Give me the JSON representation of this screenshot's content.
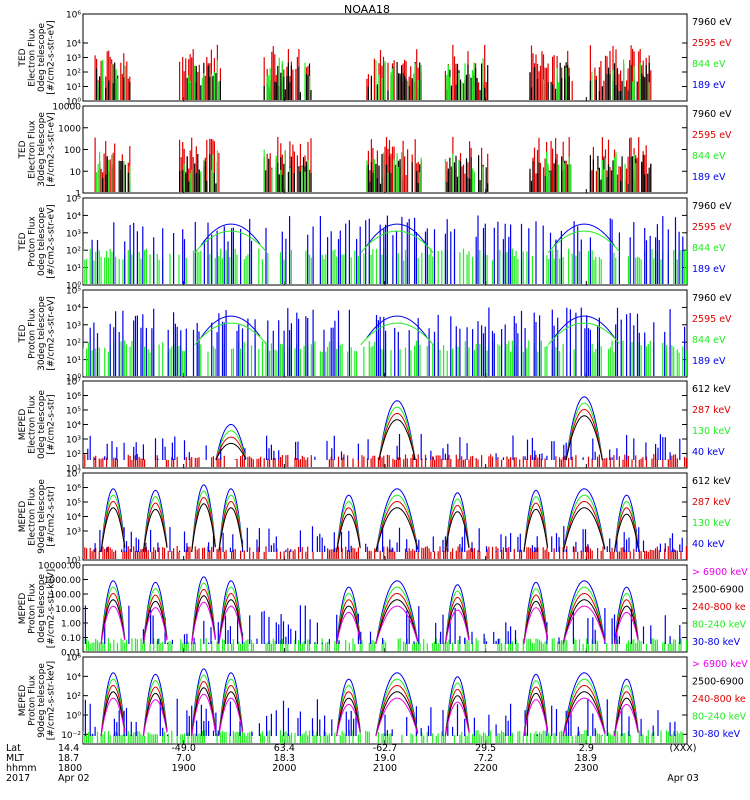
{
  "title": "NOAA18",
  "colors": {
    "black": "#000000",
    "red": "#e00000",
    "green": "#22ee22",
    "blue": "#0000ee",
    "magenta": "#ee00ee"
  },
  "chart_data": [
    {
      "type": "line",
      "id": "ted-e-0",
      "ylabel": [
        "TED",
        "Electron Flux",
        "0deg telescope",
        "[#/cm2-s-str-eV]"
      ],
      "y_log": true,
      "ylim": [
        1,
        1000000
      ],
      "yticks": [
        {
          "v": 1,
          "t": "10⁰"
        },
        {
          "v": 10,
          "t": "10¹"
        },
        {
          "v": 100,
          "t": "10²"
        },
        {
          "v": 1000,
          "t": "10³"
        },
        {
          "v": 10000,
          "t": "10⁴"
        },
        {
          "v": 1000000,
          "t": "10⁶"
        }
      ],
      "legend": [
        {
          "text": "7960 eV",
          "color": "#000000"
        },
        {
          "text": "2595 eV",
          "color": "#e00000"
        },
        {
          "text": "844 eV",
          "color": "#22ee22"
        },
        {
          "text": "189 eV",
          "color": "#0000ee"
        }
      ]
    },
    {
      "type": "line",
      "id": "ted-e-30",
      "ylabel": [
        "TED",
        "Electron Flux",
        "30deg telescope",
        "[#/cm2-s-str-eV]"
      ],
      "y_log": true,
      "ylim": [
        1,
        10000
      ],
      "yticks": [
        {
          "v": 1,
          "t": "1"
        },
        {
          "v": 10,
          "t": "10"
        },
        {
          "v": 100,
          "t": "100"
        },
        {
          "v": 1000,
          "t": "1000"
        },
        {
          "v": 10000,
          "t": "10000"
        }
      ],
      "legend": [
        {
          "text": "7960 eV",
          "color": "#000000"
        },
        {
          "text": "2595 eV",
          "color": "#e00000"
        },
        {
          "text": "844 eV",
          "color": "#22ee22"
        },
        {
          "text": "189 eV",
          "color": "#0000ee"
        }
      ]
    },
    {
      "type": "line",
      "id": "ted-p-0",
      "ylabel": [
        "TED",
        "Proton Flux",
        "0deg telescope",
        "[#/cm2-s-str-eV]"
      ],
      "y_log": true,
      "ylim": [
        1,
        100000
      ],
      "yticks": [
        {
          "v": 1,
          "t": "10⁰"
        },
        {
          "v": 10,
          "t": "10¹"
        },
        {
          "v": 100,
          "t": "10²"
        },
        {
          "v": 1000,
          "t": "10³"
        },
        {
          "v": 10000,
          "t": "10⁴"
        },
        {
          "v": 100000,
          "t": "10⁵"
        }
      ],
      "legend": [
        {
          "text": "7960 eV",
          "color": "#000000"
        },
        {
          "text": "2595 eV",
          "color": "#e00000"
        },
        {
          "text": "844 eV",
          "color": "#22ee22"
        },
        {
          "text": "189 eV",
          "color": "#0000ee"
        }
      ]
    },
    {
      "type": "line",
      "id": "ted-p-30",
      "ylabel": [
        "TED",
        "Proton Flux",
        "30deg telescope",
        "[#/cm2-s-str-eV]"
      ],
      "y_log": true,
      "ylim": [
        1,
        100000
      ],
      "yticks": [
        {
          "v": 1,
          "t": "10⁰"
        },
        {
          "v": 10,
          "t": "10¹"
        },
        {
          "v": 100,
          "t": "10²"
        },
        {
          "v": 1000,
          "t": "10³"
        },
        {
          "v": 10000,
          "t": "10⁴"
        },
        {
          "v": 100000,
          "t": "10⁵"
        }
      ],
      "legend": [
        {
          "text": "7960 eV",
          "color": "#000000"
        },
        {
          "text": "2595 eV",
          "color": "#e00000"
        },
        {
          "text": "844 eV",
          "color": "#22ee22"
        },
        {
          "text": "189 eV",
          "color": "#0000ee"
        }
      ]
    },
    {
      "type": "line",
      "id": "meped-e-0",
      "ylabel": [
        "MEPED",
        "Electron Flux",
        "0deg telescope",
        "[#/cm2-s-str]"
      ],
      "y_log": true,
      "ylim": [
        10,
        10000000
      ],
      "yticks": [
        {
          "v": 10,
          "t": "10¹"
        },
        {
          "v": 100,
          "t": "10²"
        },
        {
          "v": 1000,
          "t": "10³"
        },
        {
          "v": 10000,
          "t": "10⁴"
        },
        {
          "v": 100000,
          "t": "10⁵"
        },
        {
          "v": 1000000,
          "t": "10⁶"
        },
        {
          "v": 10000000,
          "t": "10⁷"
        }
      ],
      "legend": [
        {
          "text": "612 keV",
          "color": "#000000"
        },
        {
          "text": "287 keV",
          "color": "#e00000"
        },
        {
          "text": "130 keV",
          "color": "#22ee22"
        },
        {
          "text": "40 keV",
          "color": "#0000ee"
        }
      ]
    },
    {
      "type": "line",
      "id": "meped-e-90",
      "ylabel": [
        "MEPED",
        "Electron Flux",
        "90deg telescope",
        "[#/cm2-s-str]"
      ],
      "y_log": true,
      "ylim": [
        10,
        10000000
      ],
      "yticks": [
        {
          "v": 10,
          "t": "10¹"
        },
        {
          "v": 1000,
          "t": "10³"
        },
        {
          "v": 10000,
          "t": "10⁴"
        },
        {
          "v": 100000,
          "t": "10⁵"
        },
        {
          "v": 1000000,
          "t": "10⁶"
        },
        {
          "v": 10000000,
          "t": "10⁷"
        }
      ],
      "legend": [
        {
          "text": "612 keV",
          "color": "#000000"
        },
        {
          "text": "287 keV",
          "color": "#e00000"
        },
        {
          "text": "130 keV",
          "color": "#22ee22"
        },
        {
          "text": "40 keV",
          "color": "#0000ee"
        }
      ]
    },
    {
      "type": "line",
      "id": "meped-p-0",
      "ylabel": [
        "MEPED",
        "Proton Flux",
        "0deg telescope",
        "[#/cm2-s-str-keV]"
      ],
      "y_log": true,
      "ylim": [
        0.01,
        10000
      ],
      "yticks": [
        {
          "v": 0.01,
          "t": "0.01"
        },
        {
          "v": 0.1,
          "t": "0.10"
        },
        {
          "v": 1,
          "t": "1.00"
        },
        {
          "v": 10,
          "t": "10.00"
        },
        {
          "v": 100,
          "t": "100.00"
        },
        {
          "v": 1000,
          "t": "1000.00"
        },
        {
          "v": 10000,
          "t": "10000.00"
        }
      ],
      "legend": [
        {
          "text": "> 6900 keV",
          "color": "#ee00ee"
        },
        {
          "text": "2500-6900",
          "color": "#000000"
        },
        {
          "text": "240-800 ke",
          "color": "#e00000"
        },
        {
          "text": "80-240 keV",
          "color": "#22ee22"
        },
        {
          "text": "30-80 keV",
          "color": "#0000ee"
        }
      ]
    },
    {
      "type": "line",
      "id": "meped-p-90",
      "ylabel": [
        "MEPED",
        "Proton Flux",
        "90deg telescope",
        "[#/cm2-s-str-keV]"
      ],
      "y_log": true,
      "ylim": [
        0.001,
        1000000
      ],
      "yticks": [
        {
          "v": 0.01,
          "t": "10⁻²"
        },
        {
          "v": 1,
          "t": "10⁰"
        },
        {
          "v": 100,
          "t": "10²"
        },
        {
          "v": 10000,
          "t": "10⁴"
        },
        {
          "v": 1000000,
          "t": "10⁶"
        }
      ],
      "legend": [
        {
          "text": "> 6900 keV",
          "color": "#ee00ee"
        },
        {
          "text": "2500-6900",
          "color": "#000000"
        },
        {
          "text": "240-800 ke",
          "color": "#e00000"
        },
        {
          "text": "80-240 keV",
          "color": "#22ee22"
        },
        {
          "text": "30-80 keV",
          "color": "#0000ee"
        }
      ]
    }
  ],
  "time_axis": {
    "row_labels": [
      "Lat",
      "MLT",
      "hhmm",
      "2017"
    ],
    "ticks": [
      {
        "lat": "14.4",
        "mlt": "18.7",
        "hhmm": "1800",
        "date": "Apr 02"
      },
      {
        "lat": "-49.0",
        "mlt": "7.0",
        "hhmm": "1900",
        "date": ""
      },
      {
        "lat": "63.4",
        "mlt": "18.3",
        "hhmm": "2000",
        "date": ""
      },
      {
        "lat": "-62.7",
        "mlt": "19.0",
        "hhmm": "2100",
        "date": ""
      },
      {
        "lat": "29.5",
        "mlt": "7.2",
        "hhmm": "2200",
        "date": ""
      },
      {
        "lat": "2.9",
        "mlt": "18.9",
        "hhmm": "2300",
        "date": ""
      },
      {
        "lat": "(XXX)",
        "mlt": "",
        "hhmm": "",
        "date": "Apr 03"
      }
    ]
  }
}
